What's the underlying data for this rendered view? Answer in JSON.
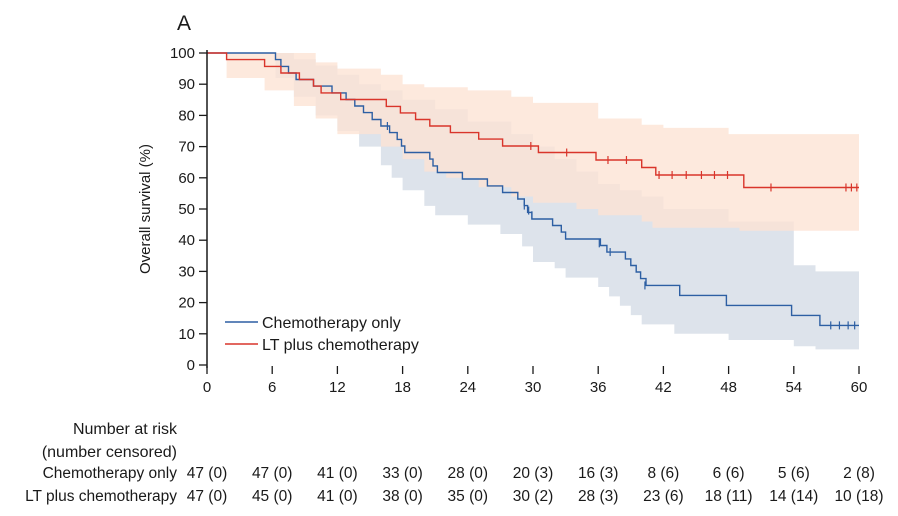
{
  "chart_data": {
    "type": "line",
    "panel_label": "A",
    "ylabel": "Overall survival (%)",
    "xlabel": "",
    "xlim": [
      0,
      60
    ],
    "ylim": [
      0,
      100
    ],
    "x_ticks": [
      0,
      6,
      12,
      18,
      24,
      30,
      36,
      42,
      48,
      54,
      60
    ],
    "y_ticks": [
      0,
      10,
      20,
      30,
      40,
      50,
      60,
      70,
      80,
      90,
      100
    ],
    "grid": false,
    "legend_position": "bottom-left",
    "series": [
      {
        "name": "Chemotherapy only",
        "color": "#2d5fa3",
        "band_color": "#d4dbe6",
        "steps": [
          [
            0,
            100
          ],
          [
            6.3,
            97.9
          ],
          [
            6.8,
            95.7
          ],
          [
            7.5,
            93.6
          ],
          [
            8.2,
            91.5
          ],
          [
            9.8,
            89.4
          ],
          [
            11.5,
            87.2
          ],
          [
            12.8,
            85.1
          ],
          [
            13.6,
            83
          ],
          [
            14.4,
            80.9
          ],
          [
            15.2,
            78.7
          ],
          [
            16,
            76.6
          ],
          [
            16.8,
            74.5
          ],
          [
            17.5,
            72.3
          ],
          [
            17.9,
            70.2
          ],
          [
            18.2,
            68.1
          ],
          [
            20.5,
            66
          ],
          [
            20.8,
            63.8
          ],
          [
            21.2,
            61.7
          ],
          [
            23.5,
            59.6
          ],
          [
            25.8,
            57.4
          ],
          [
            27.2,
            55.3
          ],
          [
            28.6,
            53.2
          ],
          [
            29.2,
            51.1
          ],
          [
            29.5,
            48.9
          ],
          [
            29.9,
            46.8
          ],
          [
            31.8,
            44.7
          ],
          [
            32.6,
            42.6
          ],
          [
            33,
            40.4
          ],
          [
            36.2,
            38.3
          ],
          [
            36.8,
            36.2
          ],
          [
            38.5,
            34
          ],
          [
            39,
            31.9
          ],
          [
            39.5,
            29.8
          ],
          [
            39.9,
            27.7
          ],
          [
            40.4,
            25.5
          ],
          [
            43.5,
            22.3
          ],
          [
            47.8,
            19.1
          ],
          [
            53.8,
            15.9
          ],
          [
            56.4,
            12.7
          ],
          [
            60,
            12.7
          ]
        ],
        "lower": [
          [
            0,
            100
          ],
          [
            6.3,
            92
          ],
          [
            8,
            86
          ],
          [
            10,
            80
          ],
          [
            12,
            75
          ],
          [
            14,
            70
          ],
          [
            16,
            64
          ],
          [
            17,
            60
          ],
          [
            18,
            56
          ],
          [
            20,
            51
          ],
          [
            21,
            48
          ],
          [
            24,
            45
          ],
          [
            27,
            42
          ],
          [
            29,
            38
          ],
          [
            30,
            33
          ],
          [
            32,
            31
          ],
          [
            33,
            28
          ],
          [
            36,
            25
          ],
          [
            37,
            22
          ],
          [
            38,
            19
          ],
          [
            39,
            16
          ],
          [
            40,
            13
          ],
          [
            43,
            10
          ],
          [
            48,
            8
          ],
          [
            54,
            6
          ],
          [
            56,
            5
          ],
          [
            60,
            5
          ]
        ],
        "upper": [
          [
            0,
            100
          ],
          [
            6.3,
            100
          ],
          [
            8,
            98
          ],
          [
            10,
            96
          ],
          [
            12,
            93
          ],
          [
            14,
            90
          ],
          [
            16,
            88
          ],
          [
            18,
            85
          ],
          [
            21,
            82
          ],
          [
            24,
            78
          ],
          [
            28,
            74
          ],
          [
            30,
            70
          ],
          [
            32,
            66
          ],
          [
            34,
            62
          ],
          [
            36,
            58
          ],
          [
            38,
            56
          ],
          [
            40,
            54
          ],
          [
            42,
            50
          ],
          [
            48,
            46
          ],
          [
            54,
            32
          ],
          [
            56,
            30
          ],
          [
            60,
            30
          ]
        ],
        "censor_times": [
          [
            16.6,
            76.6
          ],
          [
            29.2,
            51.1
          ],
          [
            29.6,
            49.5
          ],
          [
            29.9,
            48
          ],
          [
            36.1,
            39
          ],
          [
            37.1,
            36.2
          ],
          [
            40.3,
            25.5
          ],
          [
            57.4,
            12.7
          ],
          [
            58.2,
            12.7
          ],
          [
            59,
            12.7
          ],
          [
            59.6,
            12.7
          ]
        ],
        "at_risk": [
          "47 (0)",
          "47 (0)",
          "41 (0)",
          "33 (0)",
          "28 (0)",
          "20 (3)",
          "16 (3)",
          "8 (6)",
          "6 (6)",
          "5 (6)",
          "2 (8)"
        ]
      },
      {
        "name": "LT plus chemotherapy",
        "color": "#d9352b",
        "band_color": "#fde3d4",
        "steps": [
          [
            0,
            100
          ],
          [
            1.8,
            97.9
          ],
          [
            5.3,
            95.7
          ],
          [
            6.8,
            93.6
          ],
          [
            8.5,
            91.5
          ],
          [
            9.8,
            89.4
          ],
          [
            10.5,
            87.2
          ],
          [
            12.3,
            85.1
          ],
          [
            16.5,
            82.9
          ],
          [
            17.8,
            80.8
          ],
          [
            19.2,
            78.7
          ],
          [
            20.5,
            76.6
          ],
          [
            22.4,
            74.5
          ],
          [
            25,
            72.4
          ],
          [
            27.2,
            70.2
          ],
          [
            30.5,
            68.1
          ],
          [
            35.8,
            65.7
          ],
          [
            40,
            63.3
          ],
          [
            41.3,
            60.9
          ],
          [
            49.4,
            56.9
          ],
          [
            60,
            56.9
          ]
        ],
        "lower": [
          [
            0,
            100
          ],
          [
            1.8,
            92
          ],
          [
            5.3,
            88
          ],
          [
            8,
            83
          ],
          [
            10,
            79
          ],
          [
            12,
            74
          ],
          [
            16,
            70
          ],
          [
            18,
            66
          ],
          [
            20,
            62
          ],
          [
            22,
            60
          ],
          [
            25,
            57
          ],
          [
            28,
            54
          ],
          [
            30,
            52
          ],
          [
            34,
            50
          ],
          [
            36,
            48
          ],
          [
            40,
            46
          ],
          [
            41,
            44
          ],
          [
            49,
            43
          ],
          [
            54,
            43
          ],
          [
            60,
            43
          ]
        ],
        "upper": [
          [
            0,
            100
          ],
          [
            6,
            100
          ],
          [
            10,
            97
          ],
          [
            12,
            95
          ],
          [
            16,
            93
          ],
          [
            18,
            90
          ],
          [
            20,
            89
          ],
          [
            24,
            88
          ],
          [
            28,
            86
          ],
          [
            30,
            84
          ],
          [
            36,
            79
          ],
          [
            40,
            77
          ],
          [
            42,
            76
          ],
          [
            48,
            74
          ],
          [
            50,
            74
          ],
          [
            60,
            74
          ]
        ],
        "censor_times": [
          [
            29.8,
            70.2
          ],
          [
            33.1,
            68.1
          ],
          [
            36.9,
            65.7
          ],
          [
            38.6,
            65.7
          ],
          [
            41.6,
            60.9
          ],
          [
            42.8,
            60.9
          ],
          [
            44.1,
            60.9
          ],
          [
            45.5,
            60.9
          ],
          [
            46.7,
            60.9
          ],
          [
            47.9,
            60.9
          ],
          [
            51.9,
            56.9
          ],
          [
            58.8,
            56.9
          ],
          [
            59.3,
            56.9
          ],
          [
            59.8,
            56.9
          ]
        ],
        "at_risk": [
          "47 (0)",
          "45 (0)",
          "41 (0)",
          "38 (0)",
          "35 (0)",
          "30 (2)",
          "28 (3)",
          "23 (6)",
          "18 (11)",
          "14 (14)",
          "10 (18)"
        ]
      }
    ],
    "risk_table": {
      "title_line1": "Number at risk",
      "title_line2": "(number censored)",
      "row_labels": [
        "Chemotherapy only",
        "LT plus chemotherapy"
      ]
    }
  }
}
